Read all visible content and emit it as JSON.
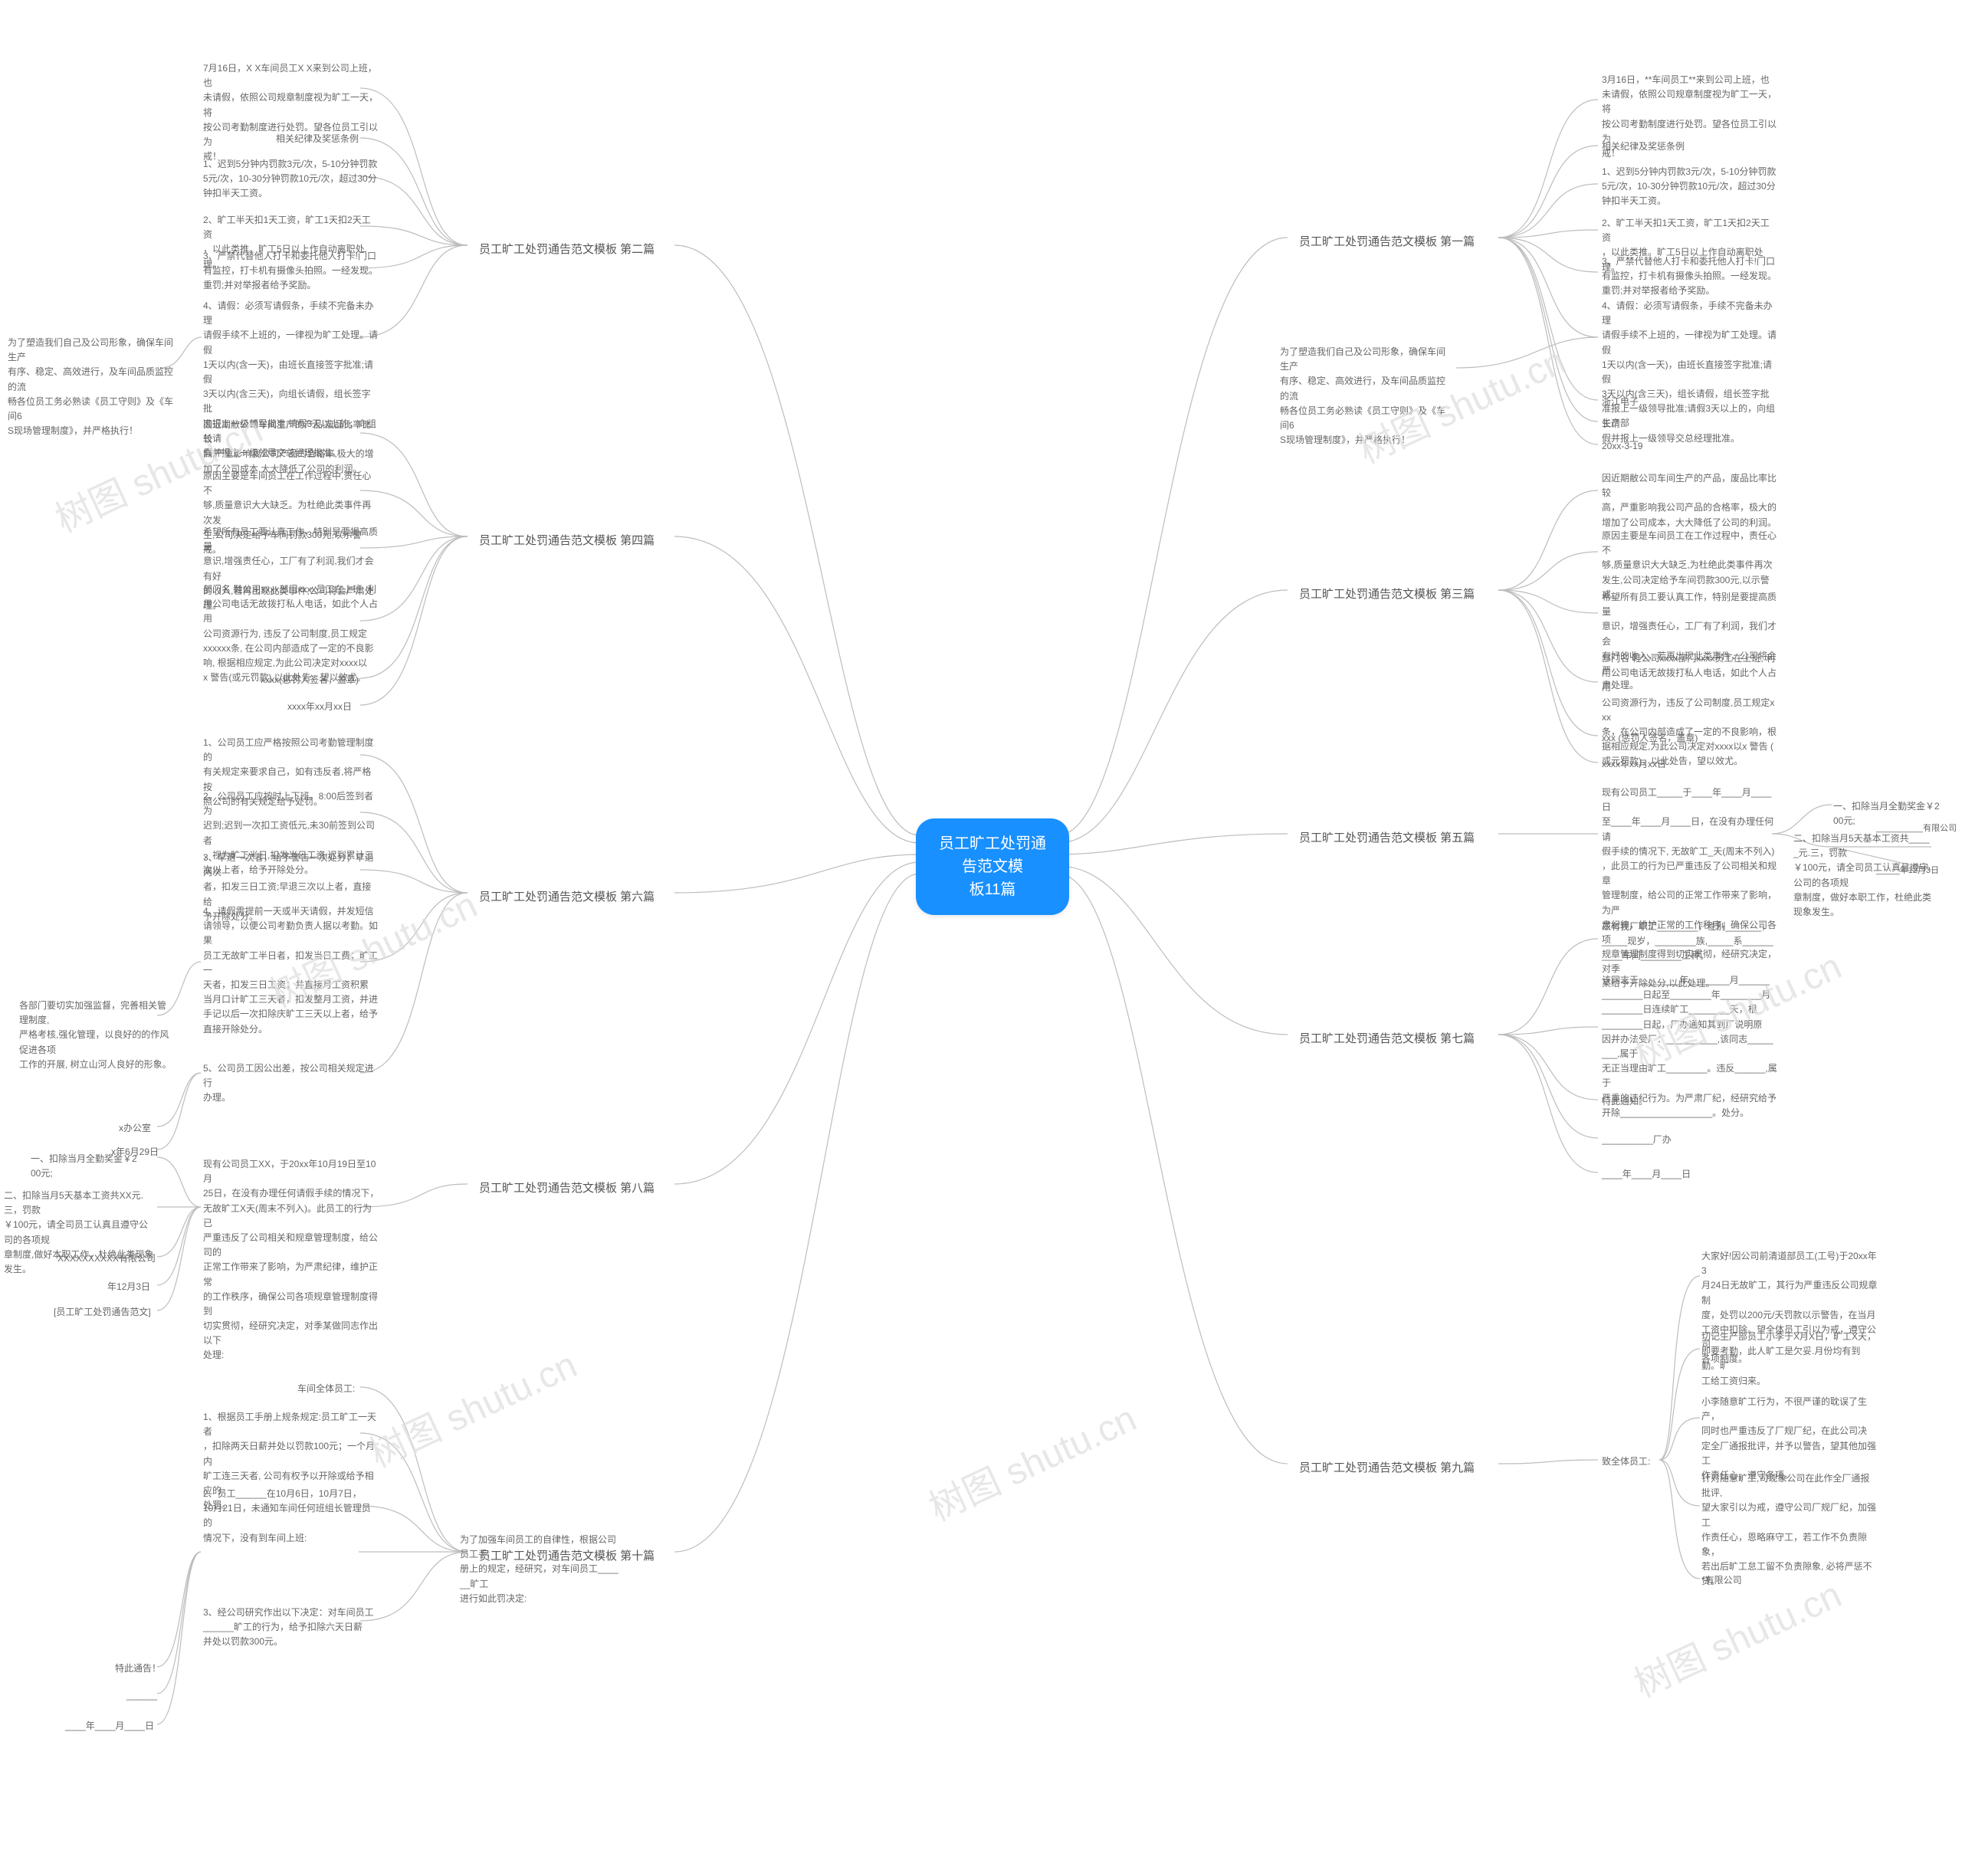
{
  "center": {
    "title": "员工旷工处罚通告范文模\n板11篇"
  },
  "colors": {
    "center_bg": "#1890ff",
    "line": "#bdbdbd",
    "watermark": "#dddddd"
  },
  "watermark_text": "树图 shutu.cn",
  "branches": {
    "b1": {
      "label": "员工旷工处罚通告范文模板 第一篇",
      "leaves": [
        "3月16日，**车间员工**来到公司上班，也\n未请假，依照公司规章制度视为旷工一天，将\n按公司考勤制度进行处罚。望各位员工引以为\n戒！",
        "相关纪律及奖惩条例",
        "1、迟到5分钟内罚款3元/次，5-10分钟罚款\n5元/次，10-30分钟罚款10元/次，超过30分\n钟扣半天工资。",
        "2、旷工半天扣1天工资，旷工1天扣2天工资\n，以此类推。旷工5日以上作自动离职处理。",
        "3、严禁代替他人打卡和委托他人打卡!门口\n有监控，打卡机有摄像头拍照。一经发现。\n重罚;并对举报者给予奖励。",
        "4、请假：必须写请假条，手续不完备未办理\n请假手续不上班的，一律视为旷工处理。请假\n1天以内(含一天)，由班长直接签字批准;请假\n3天以内(含三天)，组长请假，组长签字批\n准报上一级领导批准;请假3天以上的，向组长请\n假并报上一级领导交总经理批准。",
        "浙江电子",
        "生产部",
        "20xx-3-19"
      ],
      "extra": "为了塑造我们自己及公司形象，确保车间生产\n有序、稳定、高效进行，及车间品质监控的流\n畅各位员工务必熟读《员工守则》及《车间6\nS现场管理制度》，并严格执行！"
    },
    "b2": {
      "label": "员工旷工处罚通告范文模板 第二篇",
      "leaves": [
        "7月16日，X X车间员工X X来到公司上班，也\n未请假，依照公司规章制度视为旷工一天，将\n按公司考勤制度进行处罚。望各位员工引以为\n戒！",
        "相关纪律及奖惩条例",
        "1、迟到5分钟内罚款3元/次，5-10分钟罚款\n5元/次，10-30分钟罚款10元/次，超过30分\n钟扣半天工资。",
        "2、旷工半天扣1天工资，旷工1天扣2天工资\n，以此类推。旷工5日以上作自动离职处理。",
        "3、严禁代替他人打卡和委托他人打卡!门口\n有监控，打卡机有摄像头拍照。一经发现。\n重罚;并对举报者给予奖励。",
        "4、请假：必须写请假条，手续不完备未办理\n请假手续不上班的，一律视为旷工处理。请假\n1天以内(含一天)，由班长直接签字批准;请假\n3天以内(含三天)，向组长请假，组长签字批\n准报上一级领导批准;请假3天以上的，向组长请\n假并报上一级领导交总经理批准。"
      ],
      "extra": "为了塑造我们自己及公司形象，确保车间生产\n有序、稳定、高效进行，及车间品质监控的流\n畅各位员工务必熟读《员工守则》及《车间6\nS现场管理制度》，并严格执行！"
    },
    "b3": {
      "label": "员工旷工处罚通告范文模板 第三篇",
      "leaves": [
        "因近期敝公司车间生产的产品，废品比率比较\n高，严重影响我公司产品的合格率，极大的\n增加了公司成本，大大降低了公司的利润。",
        "原因主要是车间员工在工作过程中，责任心不\n够,质量意识大大缺乏,为杜绝此类事件再次\n发生,公司决定给予车间罚款300元,以示警\n戒。",
        "希望所有员工要认真工作，特别是要提高质量\n意识，增强责任心，工厂有了利润，我们才会\n有好的收入，若再出现此类事件，公司将会严\n肃处理。",
        "部门名 鞋公司xxxx部门xxxx员工在上班, 利\n用公司电话无故拨打私人电话，如此个人占用\n公司资源行为，违反了公司制度,员工规定xxx\n条，在公司内部造成了一定的不良影响，根\n据相应规定,为此公司决定对xxxx以x 警告 (\n或元罚款)，以此处告，望以效尤。",
        "xxx (惩罚人签名，盖章)",
        "xxxx年xx月xx日"
      ]
    },
    "b4": {
      "label": "员工旷工处罚通告范文模板 第四篇",
      "leaves": [
        "因近期敝公司车间生产的产品,废品比率比较\n高,严重影响我公司产品的合格率,极大的增\n加了公司成本,大大降低了公司的利润。",
        "原因主要是车间员工在工作过程中,责任心不\n够,质量意识大大缺乏。为杜绝此类事件再次发\n生,公司决定给予车间罚款300元,以示警戒。",
        "希望所有员工要认真工作，特别是要提高质量\n意识,增强责任心，工厂有了利润,我们才会有好\n的收入,若再出现此类事件,公司将会严肃处理。",
        "部门名 鞋公司xxxx部门xxxx员工在上班, 利\n用公司电话无故拨打私人电话，如此个人占用\n公司资源行为, 违反了公司制度,员工规定\nxxxxxx条, 在公司内部造成了一定的不良影\n响, 根据相应规定,为此公司决定对xxxx以\nx 警告(或元罚款),以此处告，望以效尤。",
        "xxxx(惩罚人签名，盖章)",
        "xxxx年xx月xx日"
      ]
    },
    "b5": {
      "label": "员工旷工处罚通告范文模板 第五篇",
      "leaves": [
        "现有公司员工_____于____年____月____日\n至____年____月____日，在没有办理任何请\n假手续的情况下, 无故旷工_天(周末不列入)\n，此员工的行为已严重违反了公司相关和规章\n管理制度，给公司的正常工作带来了影响，为严\n肃纪律，维护正常的工作秩序，确保公司各项\n规章管理制度得到切实贯彻，经研究决定，对季\n某给予开除处分,以此处理。",
        "一、扣除当月全勤奖金￥200元;",
        "二、扣除当月5天基本工资共_____元.三，罚款\n ￥100元，请全司员工认真且遵守公司的各项规\n章制度，做好本职工作，杜绝此类现象发生。",
        "__________有限公司",
        "_____年12月3日"
      ]
    },
    "b6": {
      "label": "员工旷工处罚通告范文模板 第六篇",
      "leaves": [
        "1、公司员工应严格按照公司考勤管理制度的\n有关规定来要求自己，如有违反者,将严格按\n照公司的有关规定给予处罚。",
        "2、公司员工应按时上下班，8:00后签到者为\n迟到;迟到一次扣工资低元,未30前签到公司者\n，视为旷工半日,扣发当日工资;迟到累计三\n次以上者，给予开除处分。",
        "3、早退一次者，给予警告一次处分；早退两次\n者，扣发三日工资;早退三次以上者，直接给\n予开除处分。",
        "4、请假需提前一天或半天请假，并发短信\n请领导，以便公司考勤负责人据以考勤。如果\n员工无故旷工半日者，扣发当日工费；旷工一\n天者，扣发三日工资；并直接月工资积累\n当月口计旷工三天者，扣发整月工资，并进\n手记以后一次扣除庆旷工三天以上者，给予\n直接开除处分。",
        "5、公司员工因公出差，按公司相关规定进行\n办理。",
        "x办公室",
        "x年6月29日"
      ],
      "extra": "各部门要切实加强监督，完善相关管理制度,\n严格考核,强化管理，以良好的的作风促进各项\n工作的开展, 树立山河人良好的形象。"
    },
    "b7": {
      "label": "员工旷工处罚通告范文模板 第七篇",
      "leaves": [
        "兹有我厂职工________，性别_______，\n_____现岁，________族,_____系______\n____车间________工种。",
        "该同志于________年________月______\n________日起至________年________月\n________日连续旷工________天，根\n________日起，厂办通知其到厂说明原\n因并办法受厂：__________,该同志________,属于\n无正当理由旷工________。违反______,属于\n严重的违纪行为。为严肃厂纪，经研究给予\n开除__________________。处分。",
        "特此通知。",
        "__________厂办",
        "____年____月____日"
      ]
    },
    "b8": {
      "label": "员工旷工处罚通告范文模板 第八篇",
      "leaves": [
        "现有公司员工XX，于20xx年10月19日至10月\n25日，在没有办理任何请假手续的情况下，\n无故旷工X天(周末不列入)。此员工的行为已\n严重违反了公司相关和规章管理制度，给公司的\n正常工作带来了影响，为严肃纪律，维护正常\n的工作秩序，确保公司各项规章管理制度得到\n切实贯彻，经研究决定，对季某做同志作出以下\n处理:",
        "一、扣除当月全勤奖金￥200元;",
        "二、扣除当月5天基本工资共XX元.三，罚款\n￥100元，请全司员工认真且遵守公司的各项规\n章制度,做好本职工作，杜绝此类现象发生。",
        "XXXXXXXXXX有限公司",
        "年12月3日",
        "[员工旷工处罚通告范文]"
      ]
    },
    "b9": {
      "label": "员工旷工处罚通告范文模板 第九篇",
      "leaves": [
        "致全体员工:",
        "大家好!因公司前清道部员工(工号)于20xx年3\n月24日无故旷工，其行为严重违反公司规章制\n度，处罚以200元/天罚款以示警告，在当月\n工资中扣除。望全体员工引以为戒，遵守公司\n各项制度。",
        "切记生产部员工小李于X月X日，旷工X天，\n即要考勤，此人旷工是欠妥.月份均有到勤。旷\n工给工资归来。",
        "小李随意旷工行为，不很严谨的耽误了生产，\n同时也严重违反了厂规厂纪，在此公司决\n定全厂通报批评，并予以警告，望其他加强工\n作责任心，遵守各项。",
        "针对随意旷工,司现象公司在此作全厂通报批评,\n望大家引以为戒，遵守公司厂规厂纪，加强工\n作责任心，恩略麻守工，若工作不负责隙象，\n若出后旷工怠工留不负责隙象, 必将严惩不贷。",
        "*有限公司"
      ]
    },
    "b10": {
      "label": "员工旷工处罚通告范文模板 第十篇",
      "leaves": [
        "车间全体员工:",
        "1、根据员工手册上规条规定:员工旷工一天者\n，扣除两天日薪并处以罚款100元；一个月内\n旷工连三天者, 公司有权予以开除或给予相应的\n处罚。",
        "2、员工______在10月6日，10月7日，\n10月21日，未通知车间任何班组长管理员的\n情况下，没有到车间上班:",
        "3、经公司研究作出以下决定：对车间员工\n______旷工的行为，给予扣除六天日薪\n并处以罚款300元。",
        "特此通告！",
        "______",
        "____年____月____日"
      ],
      "extra": "为了加强车间员工的自律性，根据公司员工手\n册上的规定，经研究，对车间员工______旷工\n进行如此罚决定:"
    }
  }
}
